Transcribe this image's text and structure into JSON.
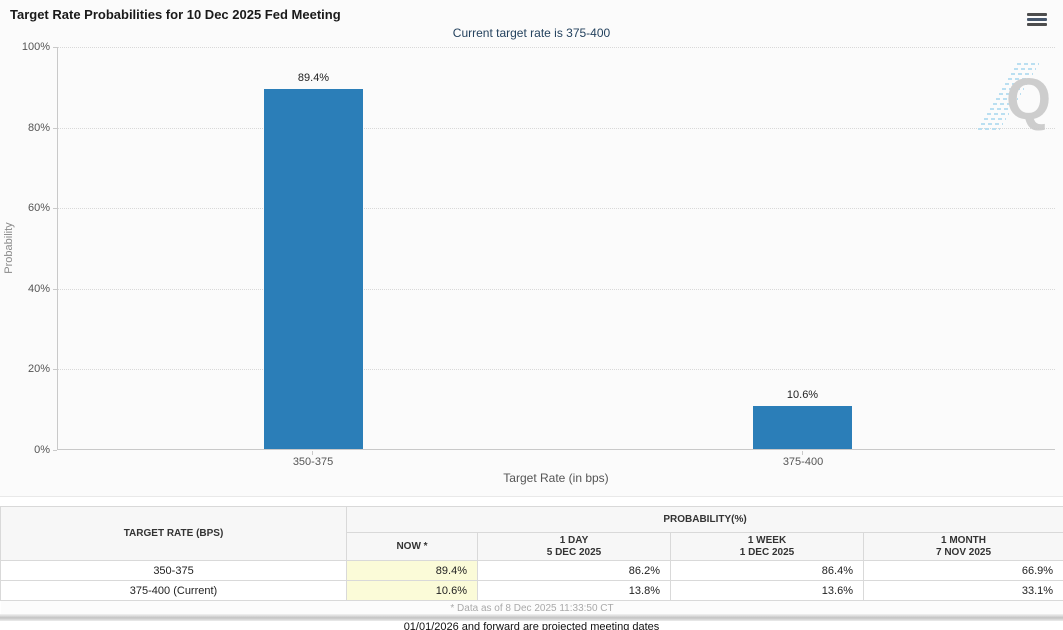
{
  "header": {
    "title": "Target Rate Probabilities for 10 Dec 2025 Fed Meeting",
    "subtitle": "Current target rate is 375-400"
  },
  "chart_data": {
    "type": "bar",
    "categories": [
      "350-375",
      "375-400"
    ],
    "values": [
      89.4,
      10.6
    ],
    "bar_labels": [
      "89.4%",
      "10.6%"
    ],
    "xlabel": "Target Rate (in bps)",
    "ylabel": "Probability",
    "ylim": [
      0,
      100
    ],
    "ytick_labels": [
      "100%",
      "80%",
      "60%",
      "40%",
      "20%",
      "0%"
    ],
    "grid": "dotted-horizontal",
    "legend": "none",
    "bar_color": "#2b7eb8"
  },
  "watermark_letter": "Q",
  "table": {
    "headers": {
      "target_rate": "TARGET RATE (BPS)",
      "probability_group": "PROBABILITY(%)",
      "now": "NOW *",
      "day_label": "1 DAY",
      "day_date": "5 DEC 2025",
      "week_label": "1 WEEK",
      "week_date": "1 DEC 2025",
      "month_label": "1 MONTH",
      "month_date": "7 NOV 2025"
    },
    "rows": [
      {
        "rate": "350-375",
        "now": "89.4%",
        "one_day": "86.2%",
        "one_week": "86.4%",
        "one_month": "66.9%"
      },
      {
        "rate": "375-400 (Current)",
        "now": "10.6%",
        "one_day": "13.8%",
        "one_week": "13.6%",
        "one_month": "33.1%"
      }
    ],
    "footnote": "* Data as of 8 Dec 2025 11:33:50 CT"
  },
  "footer_note": "01/01/2026 and forward are projected meeting dates",
  "colors": {
    "bar": "#2b7eb8",
    "subtitle_text": "#24425e",
    "now_highlight": "#fbfbd8"
  }
}
